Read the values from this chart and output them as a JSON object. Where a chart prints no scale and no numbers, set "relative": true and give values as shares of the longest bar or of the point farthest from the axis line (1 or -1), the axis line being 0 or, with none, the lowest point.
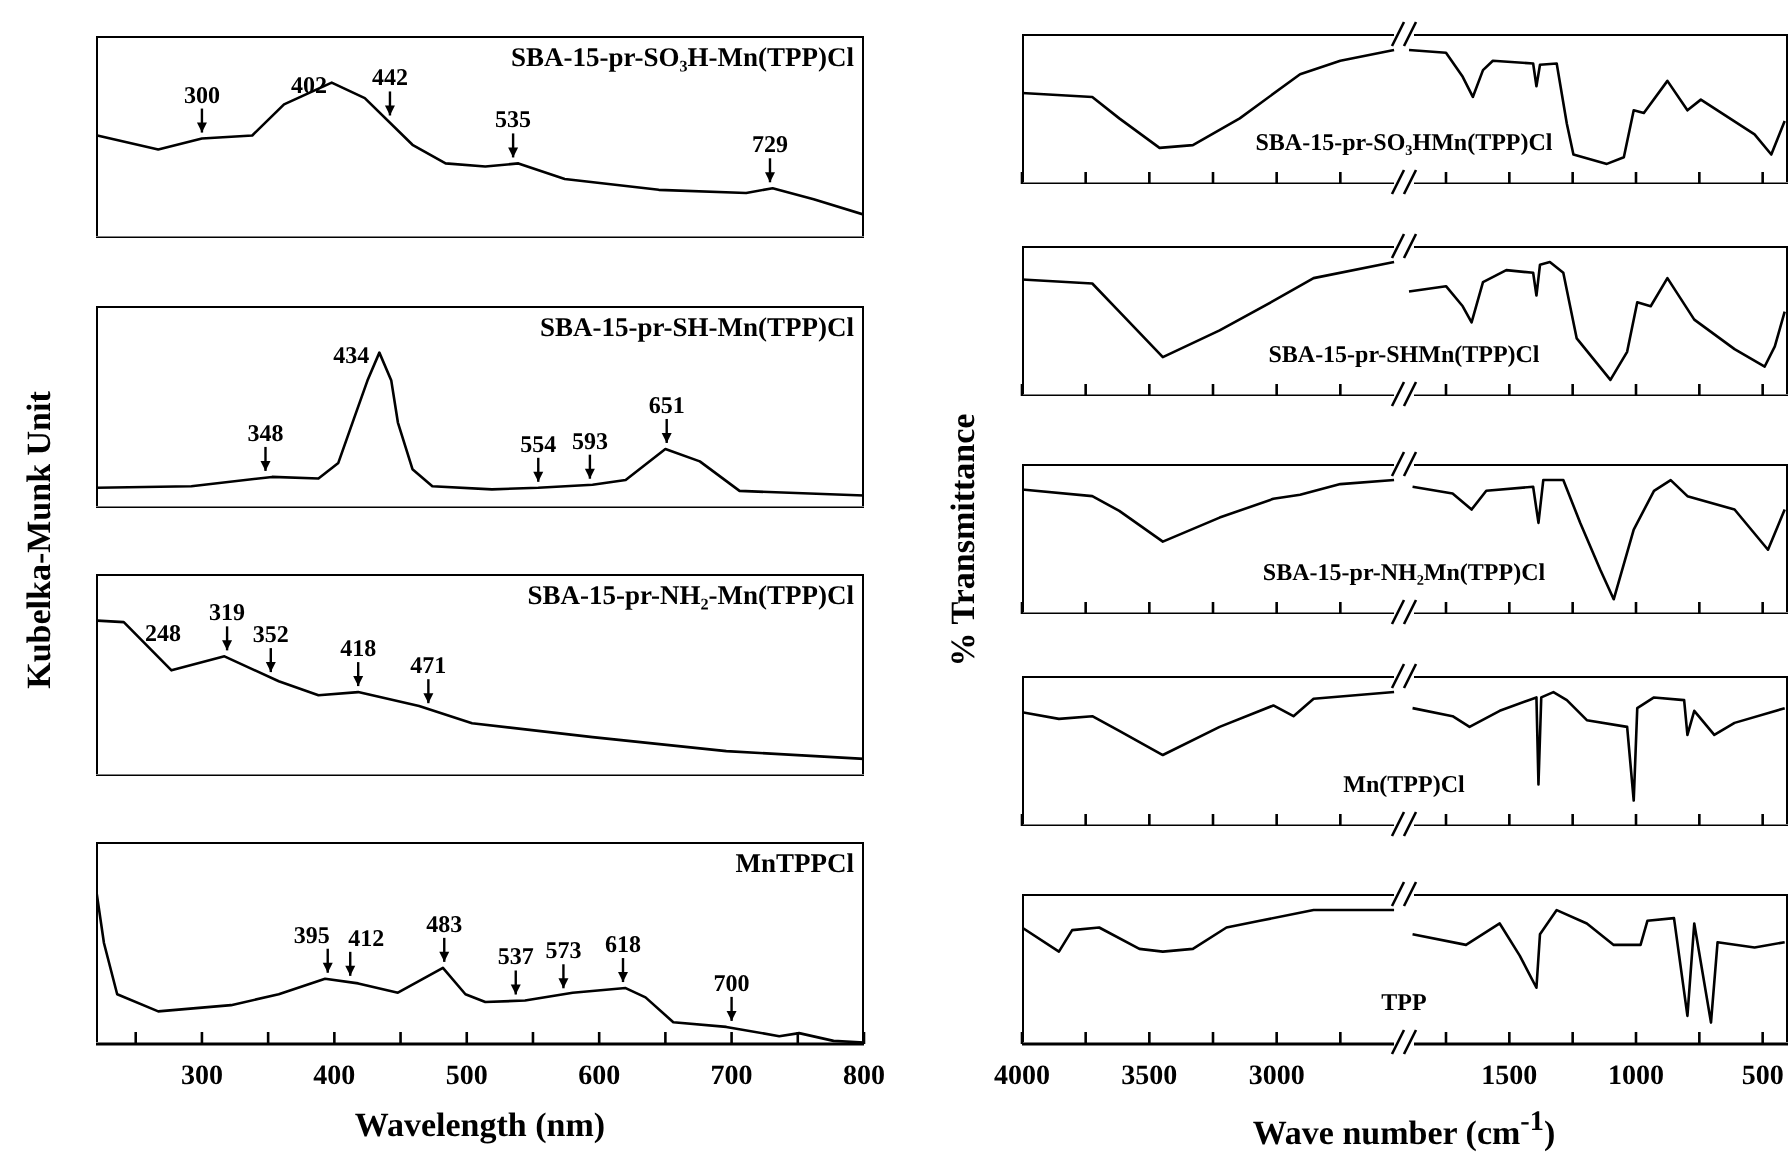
{
  "chart_data": [
    {
      "type": "line",
      "title": "SBA-15-pr-SO₃H-Mn(TPP)Cl",
      "relative": true,
      "tick_labels": false,
      "xlim": [
        220,
        800
      ],
      "x": [
        221,
        267,
        300,
        338,
        362,
        398,
        423,
        459,
        484,
        514,
        539,
        574,
        645,
        711,
        731,
        762,
        800
      ],
      "series": [
        {
          "color": "#000000",
          "values": [
            0.66,
            0.57,
            0.64,
            0.66,
            0.86,
            1,
            0.9,
            0.6,
            0.48,
            0.46,
            0.48,
            0.38,
            0.31,
            0.29,
            0.32,
            0.25,
            0.15
          ]
        }
      ],
      "annotations": [
        {
          "text": "300",
          "x": 300,
          "y": 0.64
        },
        {
          "text": "402",
          "x": 402,
          "y": 1
        },
        {
          "text": "442",
          "x": 442,
          "y": 0.75
        },
        {
          "text": "535",
          "x": 535,
          "y": 0.48
        },
        {
          "text": "729",
          "x": 729,
          "y": 0.32
        }
      ]
    },
    {
      "type": "line",
      "title": "SBA-15-pr-SH-Mn(TPP)Cl",
      "relative": true,
      "tick_labels": false,
      "xlim": [
        220,
        800
      ],
      "x": [
        221,
        292,
        353,
        388,
        403,
        415,
        425,
        434,
        443,
        448,
        459,
        474,
        519,
        554,
        595,
        620,
        650,
        676,
        706,
        800
      ],
      "series": [
        {
          "color": "#000000",
          "values": [
            0.13,
            0.14,
            0.2,
            0.19,
            0.29,
            0.58,
            0.82,
            1,
            0.82,
            0.55,
            0.25,
            0.14,
            0.12,
            0.13,
            0.15,
            0.18,
            0.38,
            0.3,
            0.11,
            0.08
          ]
        }
      ],
      "annotations": [
        {
          "text": "348",
          "x": 348,
          "y": 0.2
        },
        {
          "text": "434",
          "x": 434,
          "y": 1
        },
        {
          "text": "554",
          "x": 554,
          "y": 0.13
        },
        {
          "text": "593",
          "x": 593,
          "y": 0.15
        },
        {
          "text": "651",
          "x": 651,
          "y": 0.38
        }
      ]
    },
    {
      "type": "line",
      "title": "SBA-15-pr-NH₂-Mn(TPP)Cl",
      "ylabel": "Kubelka-Munk Unit",
      "relative": true,
      "tick_labels": false,
      "xlim": [
        220,
        800
      ],
      "x": [
        221,
        241,
        277,
        317,
        358,
        388,
        418,
        464,
        504,
        595,
        696,
        800
      ],
      "series": [
        {
          "color": "#000000",
          "values": [
            1,
            0.99,
            0.68,
            0.77,
            0.61,
            0.52,
            0.54,
            0.45,
            0.34,
            0.25,
            0.16,
            0.11
          ]
        }
      ],
      "annotations": [
        {
          "text": "248",
          "x": 248,
          "y": 0.93
        },
        {
          "text": "319",
          "x": 319,
          "y": 0.77
        },
        {
          "text": "352",
          "x": 352,
          "y": 0.63
        },
        {
          "text": "418",
          "x": 418,
          "y": 0.54
        },
        {
          "text": "471",
          "x": 471,
          "y": 0.43
        }
      ]
    },
    {
      "type": "line",
      "title": "MnTPPCl",
      "xlabel": "Wavelength (nm)",
      "relative": true,
      "tick_labels": "x",
      "xlim": [
        220,
        800
      ],
      "xticks": [
        {
          "value": 250,
          "label": null
        },
        300,
        {
          "value": 350,
          "label": null
        },
        400,
        {
          "value": 450,
          "label": null
        },
        500,
        {
          "value": 550,
          "label": null
        },
        600,
        {
          "value": 650,
          "label": null
        },
        700,
        {
          "value": 750,
          "label": null
        },
        800
      ],
      "x": [
        220,
        226,
        236,
        267,
        322,
        358,
        393,
        418,
        448,
        482,
        499,
        514,
        544,
        580,
        620,
        635,
        656,
        696,
        736,
        751,
        777,
        800
      ],
      "series": [
        {
          "color": "#000000",
          "values": [
            1,
            0.65,
            0.32,
            0.21,
            0.25,
            0.32,
            0.42,
            0.39,
            0.33,
            0.49,
            0.32,
            0.27,
            0.28,
            0.33,
            0.36,
            0.3,
            0.14,
            0.11,
            0.05,
            0.07,
            0.02,
            0.01
          ]
        }
      ],
      "annotations": [
        {
          "text": "395",
          "x": 395,
          "y": 0.42
        },
        {
          "text": "412",
          "x": 412,
          "y": 0.4
        },
        {
          "text": "483",
          "x": 483,
          "y": 0.49
        },
        {
          "text": "537",
          "x": 537,
          "y": 0.28
        },
        {
          "text": "573",
          "x": 573,
          "y": 0.32
        },
        {
          "text": "618",
          "x": 618,
          "y": 0.36
        },
        {
          "text": "700",
          "x": 700,
          "y": 0.11
        }
      ]
    },
    {
      "type": "line",
      "title": "SBA-15-pr-SO₃HMn(TPP)Cl",
      "relative": true,
      "tick_labels": false,
      "xlim": [
        4000,
        2500
      ],
      "xticks": [
        4000,
        {
          "value": 3750,
          "label": null
        },
        3500,
        {
          "value": 3250,
          "label": null
        },
        3000,
        {
          "value": 2750,
          "label": null
        }
      ],
      "x": [
        4000,
        3724,
        3618,
        3460,
        3329,
        3145,
        2908,
        2750,
        2539
      ],
      "series": [
        {
          "color": "#000000",
          "values": [
            0.68,
            0.65,
            0.49,
            0.27,
            0.29,
            0.49,
            0.82,
            0.92,
            1
          ]
        }
      ]
    },
    {
      "type": "line",
      "relative": true,
      "tick_labels": false,
      "xlim": [
        1900,
        400
      ],
      "xticks": [
        {
          "value": 1750,
          "label": null
        },
        1500,
        {
          "value": 1250,
          "label": null
        },
        1000,
        {
          "value": 750,
          "label": null
        },
        500
      ],
      "x": [
        1896,
        1750,
        1684,
        1644,
        1604,
        1565,
        1406,
        1393,
        1379,
        1313,
        1273,
        1247,
        1115,
        1048,
        1009,
        969,
        876,
        797,
        744,
        532,
        466,
        413
      ],
      "series": [
        {
          "color": "#000000",
          "values": [
            1,
            0.98,
            0.8,
            0.65,
            0.85,
            0.92,
            0.9,
            0.73,
            0.89,
            0.9,
            0.45,
            0.22,
            0.15,
            0.2,
            0.55,
            0.53,
            0.77,
            0.55,
            0.63,
            0.37,
            0.22,
            0.47
          ]
        }
      ]
    },
    {
      "type": "line",
      "title": "SBA-15-pr-SHMn(TPP)Cl",
      "relative": true,
      "tick_labels": false,
      "xlim": [
        4000,
        2500
      ],
      "xticks": [
        4000,
        {
          "value": 3750,
          "label": null
        },
        3500,
        {
          "value": 3250,
          "label": null
        },
        3000,
        {
          "value": 2750,
          "label": null
        }
      ],
      "x": [
        4000,
        3724,
        3618,
        3447,
        3224,
        3013,
        2855,
        2539
      ],
      "series": [
        {
          "color": "#000000",
          "values": [
            0.87,
            0.84,
            0.63,
            0.29,
            0.49,
            0.71,
            0.88,
            1
          ]
        }
      ]
    },
    {
      "type": "line",
      "relative": true,
      "tick_labels": false,
      "xlim": [
        1900,
        400
      ],
      "xticks": [
        {
          "value": 1750,
          "label": null
        },
        1500,
        {
          "value": 1250,
          "label": null
        },
        1000,
        {
          "value": 750,
          "label": null
        },
        500
      ],
      "x": [
        1896,
        1750,
        1684,
        1649,
        1604,
        1512,
        1406,
        1393,
        1379,
        1340,
        1287,
        1234,
        1101,
        1035,
        995,
        942,
        876,
        770,
        611,
        492,
        452,
        413
      ],
      "series": [
        {
          "color": "#000000",
          "values": [
            0.78,
            0.82,
            0.67,
            0.55,
            0.85,
            0.94,
            0.92,
            0.75,
            0.98,
            1,
            0.92,
            0.43,
            0.12,
            0.33,
            0.7,
            0.67,
            0.88,
            0.57,
            0.35,
            0.22,
            0.37,
            0.63
          ]
        }
      ]
    },
    {
      "type": "line",
      "title": "SBA-15-pr-NH₂Mn(TPP)Cl",
      "ylabel": "% Transmittance",
      "relative": true,
      "tick_labels": false,
      "xlim": [
        4000,
        2500
      ],
      "xticks": [
        4000,
        {
          "value": 3750,
          "label": null
        },
        3500,
        {
          "value": 3250,
          "label": null
        },
        3000,
        {
          "value": 2750,
          "label": null
        }
      ],
      "x": [
        4000,
        3724,
        3618,
        3447,
        3224,
        3013,
        2908,
        2750,
        2539
      ],
      "series": [
        {
          "color": "#000000",
          "values": [
            0.93,
            0.88,
            0.77,
            0.54,
            0.72,
            0.86,
            0.89,
            0.97,
            1
          ]
        }
      ]
    },
    {
      "type": "line",
      "relative": true,
      "tick_labels": false,
      "xlim": [
        1900,
        400
      ],
      "xticks": [
        {
          "value": 1750,
          "label": null
        },
        1500,
        {
          "value": 1250,
          "label": null
        },
        1000,
        {
          "value": 750,
          "label": null
        },
        500
      ],
      "x": [
        1882,
        1724,
        1649,
        1591,
        1406,
        1385,
        1366,
        1287,
        1220,
        1141,
        1088,
        1009,
        929,
        863,
        797,
        611,
        479,
        413
      ],
      "series": [
        {
          "color": "#000000",
          "values": [
            0.95,
            0.9,
            0.78,
            0.92,
            0.95,
            0.68,
            1,
            1,
            0.68,
            0.33,
            0.11,
            0.63,
            0.92,
            1,
            0.88,
            0.78,
            0.48,
            0.78
          ]
        }
      ]
    },
    {
      "type": "line",
      "title": "Mn(TPP)Cl",
      "relative": true,
      "tick_labels": false,
      "xlim": [
        4000,
        2500
      ],
      "xticks": [
        4000,
        {
          "value": 3750,
          "label": null
        },
        3500,
        {
          "value": 3250,
          "label": null
        },
        3000,
        {
          "value": 2750,
          "label": null
        }
      ],
      "x": [
        4000,
        3855,
        3724,
        3618,
        3447,
        3224,
        3013,
        2934,
        2855,
        2539
      ],
      "series": [
        {
          "color": "#000000",
          "values": [
            0.85,
            0.8,
            0.82,
            0.71,
            0.53,
            0.74,
            0.9,
            0.82,
            0.95,
            1
          ]
        }
      ]
    },
    {
      "type": "line",
      "relative": true,
      "tick_labels": false,
      "xlim": [
        1900,
        400
      ],
      "xticks": [
        {
          "value": 1750,
          "label": null
        },
        1500,
        {
          "value": 1250,
          "label": null
        },
        1000,
        {
          "value": 750,
          "label": null
        },
        500
      ],
      "x": [
        1882,
        1724,
        1657,
        1538,
        1393,
        1385,
        1374,
        1326,
        1273,
        1194,
        1035,
        1009,
        995,
        929,
        810,
        797,
        770,
        691,
        611,
        413
      ],
      "series": [
        {
          "color": "#000000",
          "values": [
            0.88,
            0.82,
            0.74,
            0.86,
            0.96,
            0.31,
            0.96,
            1,
            0.94,
            0.79,
            0.74,
            0.19,
            0.88,
            0.96,
            0.94,
            0.68,
            0.86,
            0.68,
            0.77,
            0.88
          ]
        }
      ]
    },
    {
      "type": "line",
      "title": "TPP",
      "xlabel": "Wave number (cm$^{-1}$)",
      "relative": true,
      "tick_labels": "x",
      "xlim": [
        4000,
        2500
      ],
      "xticks": [
        4000,
        {
          "value": 3750,
          "label": null
        },
        3500,
        {
          "value": 3250,
          "label": null
        },
        3000,
        {
          "value": 2750,
          "label": null
        }
      ],
      "x": [
        4000,
        3855,
        3803,
        3697,
        3539,
        3447,
        3329,
        3197,
        3066,
        2855,
        2539
      ],
      "series": [
        {
          "color": "#000000",
          "values": [
            0.87,
            0.69,
            0.85,
            0.87,
            0.71,
            0.69,
            0.71,
            0.87,
            0.92,
            1,
            1
          ]
        }
      ]
    },
    {
      "type": "line",
      "relative": true,
      "tick_labels": "x",
      "xlim": [
        1900,
        400
      ],
      "xticks": [
        {
          "value": 1750,
          "label": null
        },
        1500,
        {
          "value": 1250,
          "label": null
        },
        1000,
        {
          "value": 750,
          "label": null
        },
        500
      ],
      "x": [
        1882,
        1671,
        1538,
        1459,
        1393,
        1379,
        1313,
        1194,
        1088,
        982,
        955,
        850,
        797,
        770,
        704,
        678,
        532,
        413
      ],
      "series": [
        {
          "color": "#000000",
          "values": [
            0.82,
            0.74,
            0.9,
            0.66,
            0.42,
            0.82,
            1,
            0.9,
            0.74,
            0.74,
            0.92,
            0.94,
            0.21,
            0.9,
            0.16,
            0.76,
            0.72,
            0.76
          ]
        }
      ]
    }
  ]
}
